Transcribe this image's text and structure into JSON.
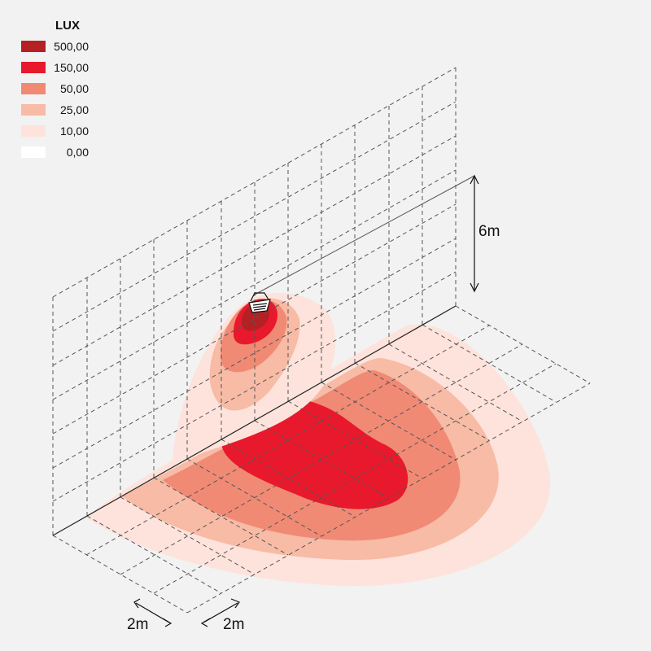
{
  "legend": {
    "title": "LUX",
    "items": [
      {
        "label": "500,00",
        "color": "#b52024"
      },
      {
        "label": "150,00",
        "color": "#e8192c"
      },
      {
        "label": "50,00",
        "color": "#f08a75"
      },
      {
        "label": "25,00",
        "color": "#f7bba6"
      },
      {
        "label": "10,00",
        "color": "#fde3dc"
      },
      {
        "label": "0,00",
        "color": "#ffffff"
      }
    ]
  },
  "dimensions": {
    "height_label": "6m",
    "grid_x_label": "2m",
    "grid_y_label": "2m"
  },
  "fixture_icon": "floodlight-icon"
}
